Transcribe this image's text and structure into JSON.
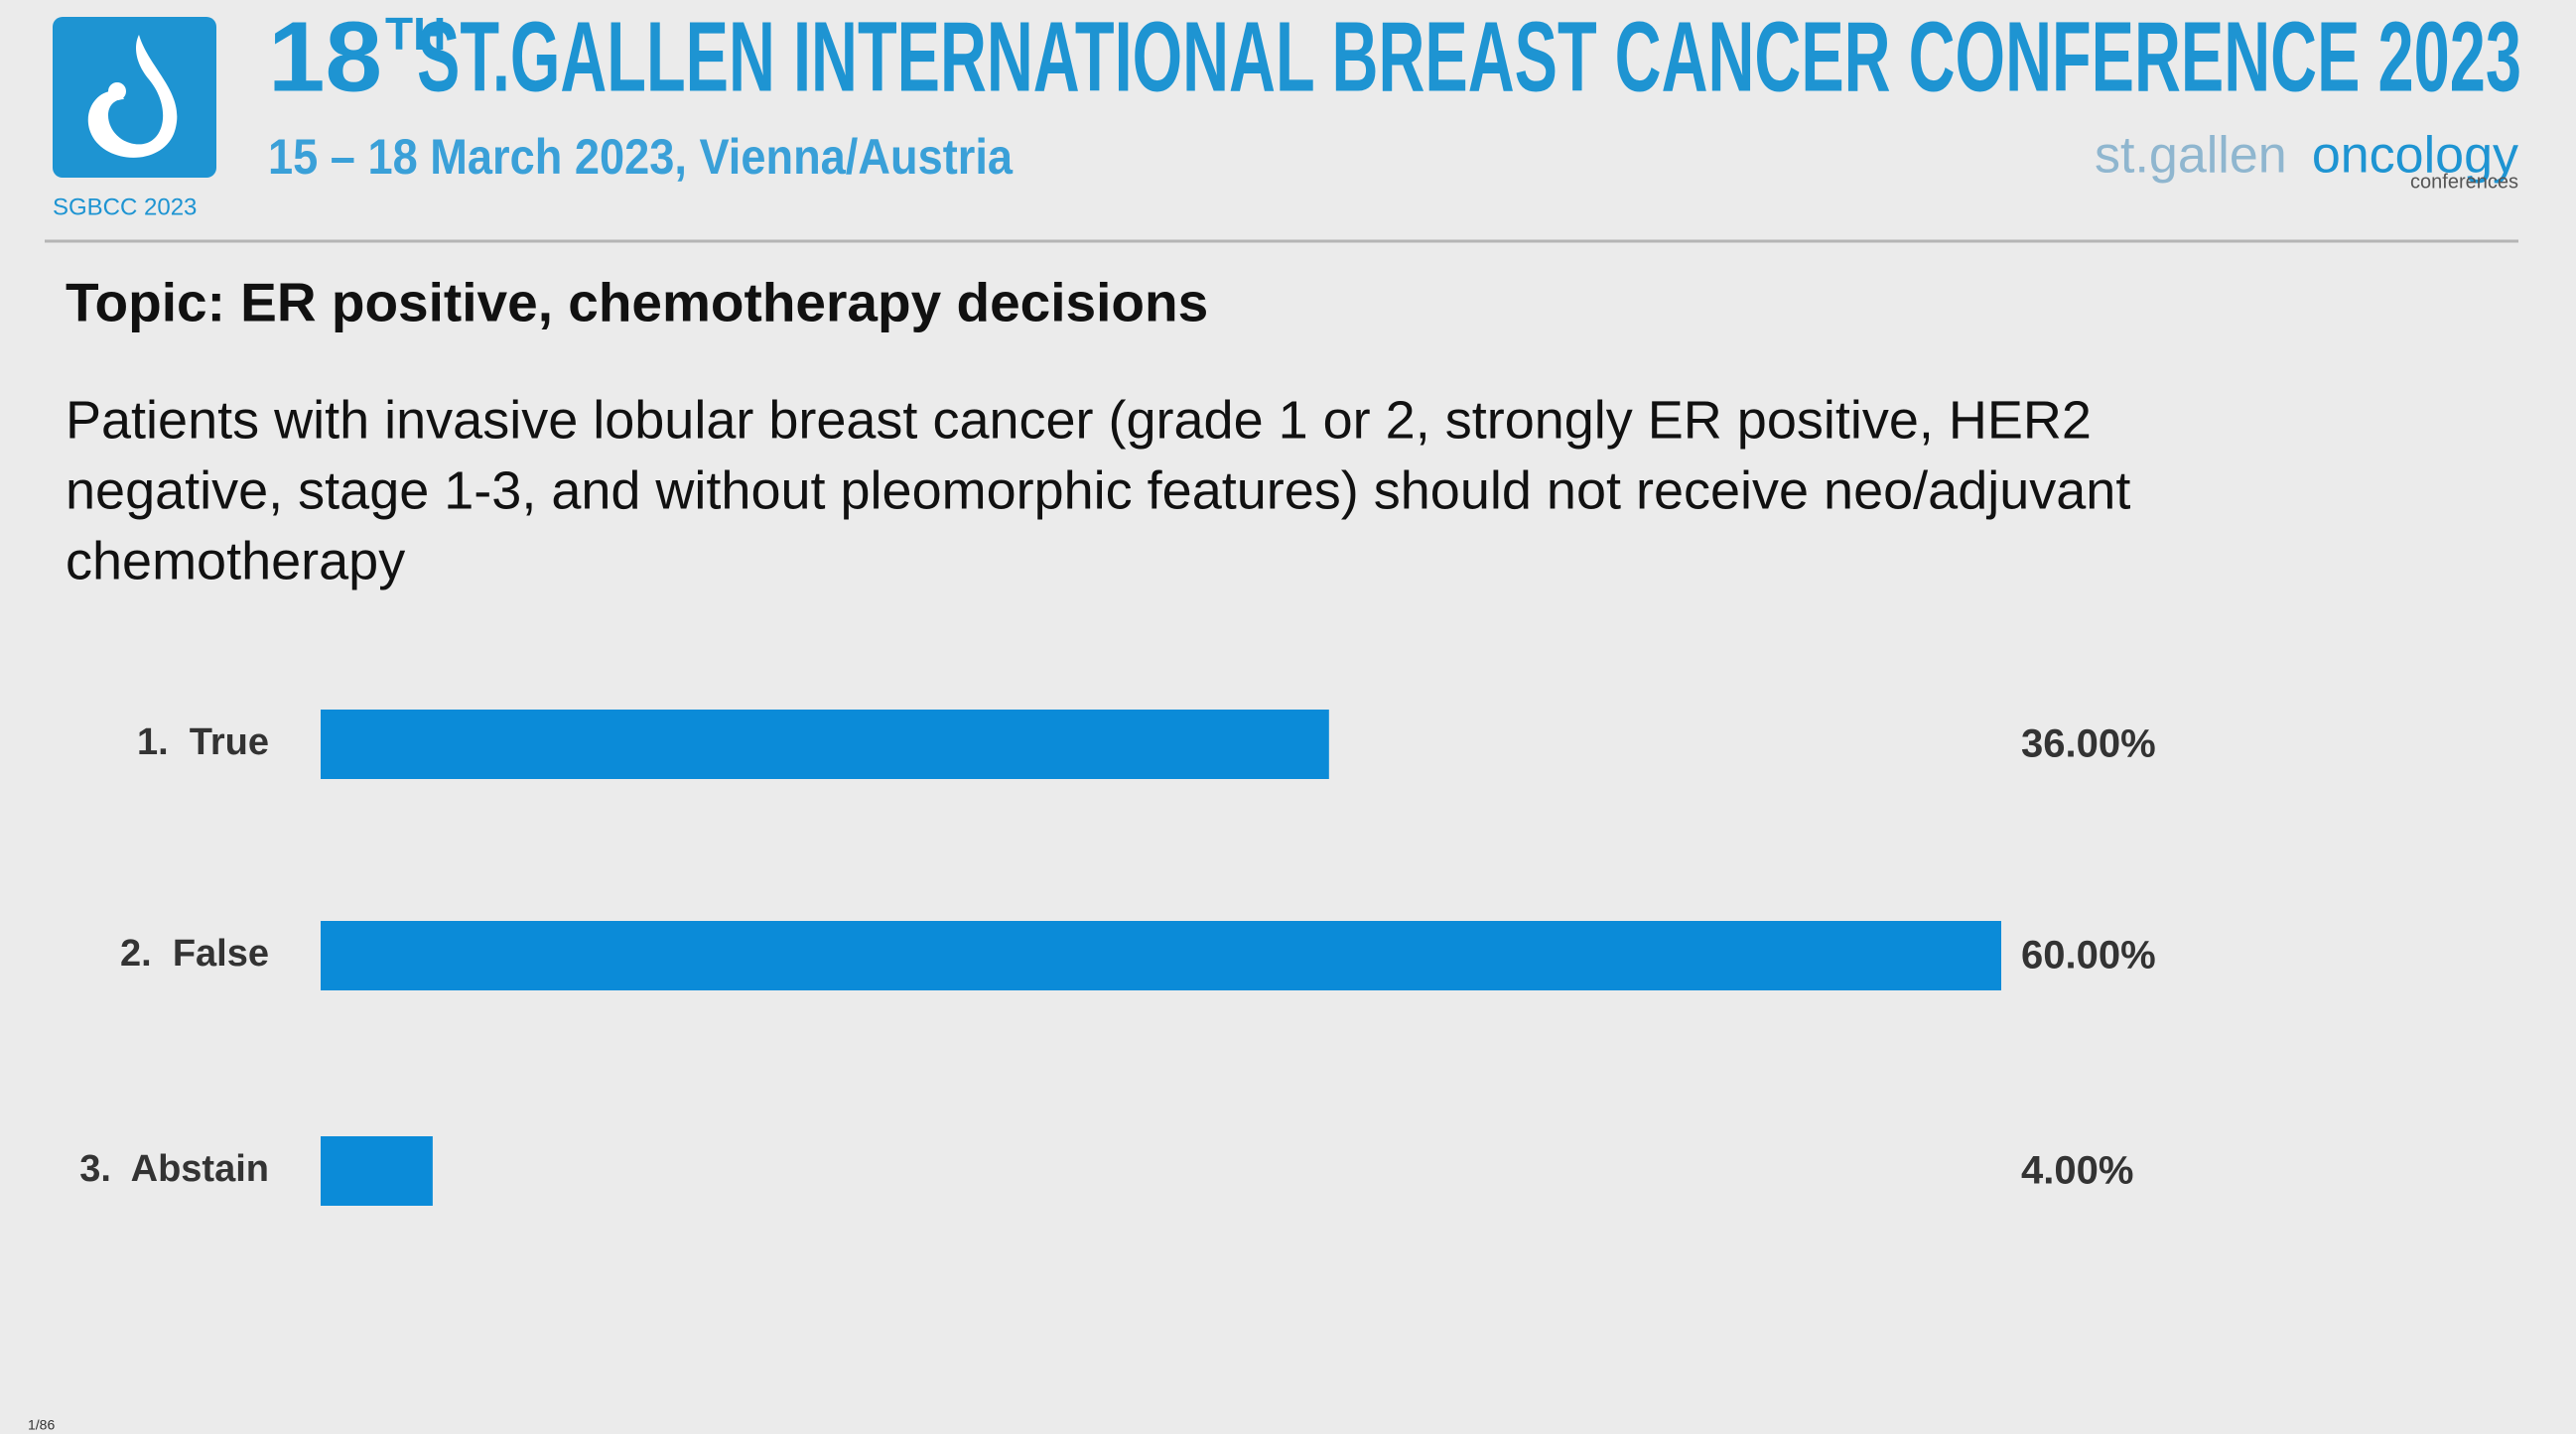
{
  "header": {
    "title_number": "18",
    "title_superscript": "TH",
    "title": "ST.GALLEN INTERNATIONAL BREAST CANCER CONFERENCE 2023",
    "subtitle": "15 – 18 March 2023, Vienna/Austria",
    "logo_caption": "SGBCC 2023",
    "brand_left": "st.gallen",
    "brand_right": "oncology",
    "brand_sub": "conferences"
  },
  "topic": "Topic: ER positive, chemotherapy decisions",
  "question_lines": [
    "Patients with invasive lobular breast cancer (grade 1 or 2, strongly ER positive, HER2",
    "negative, stage 1-3, and without pleomorphic features) should not receive neo/adjuvant",
    "chemotherapy"
  ],
  "page_number": "1/86",
  "chart_data": {
    "type": "bar",
    "orientation": "horizontal",
    "color": "#0b8bd8",
    "categories": [
      "1.  True",
      "2.  False",
      "3.  Abstain"
    ],
    "values": [
      36,
      60,
      4
    ],
    "value_labels": [
      "36.00%",
      "60.00%",
      "4.00%"
    ]
  }
}
